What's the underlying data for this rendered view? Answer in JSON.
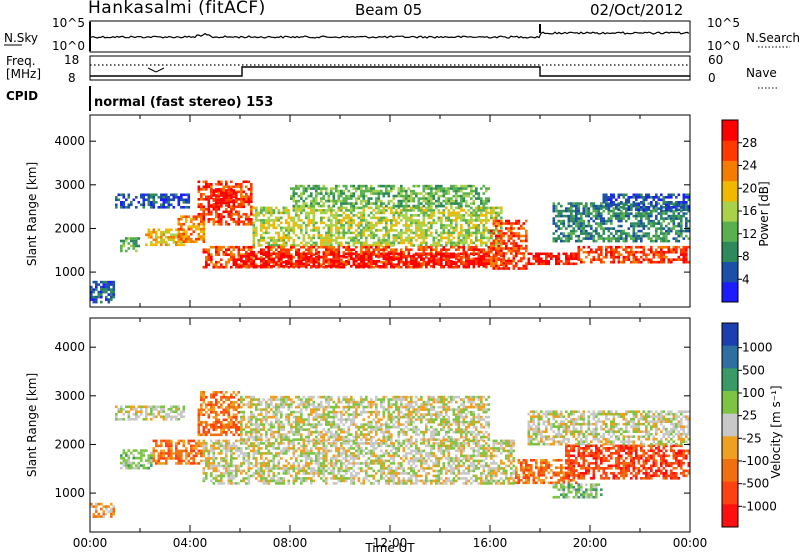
{
  "header": {
    "site": "Hankasalmi (fitACF)",
    "beam": "Beam 05",
    "date": "02/Oct/2012"
  },
  "sky_panel": {
    "left_label": "N.Sky",
    "right_label": "N.Search",
    "left_ticks": [
      "10^5",
      "10^0"
    ],
    "right_ticks": [
      "10^5",
      "10^0"
    ]
  },
  "freq_panel": {
    "left_label_1": "Freq.",
    "left_label_2": "[MHz]",
    "right_label": "Nave",
    "left_ticks": [
      "18",
      "8"
    ],
    "right_ticks": [
      "60",
      "0"
    ]
  },
  "cpid": {
    "label": "CPID",
    "value": "normal (fast stereo) 153"
  },
  "colors": {
    "power": [
      "#1c1cff",
      "#1c4fa8",
      "#2e8a5a",
      "#59b04f",
      "#a9d24a",
      "#f0b800",
      "#f47c00",
      "#ff3a00",
      "#ff0000"
    ],
    "velocity": [
      "#1b3fb0",
      "#2d6fa0",
      "#3a9a66",
      "#7cc442",
      "#c8c8c8",
      "#f0a020",
      "#f07010",
      "#ff4010",
      "#ff1010"
    ],
    "ground_scatter": "#c3c3c3"
  },
  "chart_data": [
    {
      "type": "heatmap",
      "name": "power",
      "ylabel": "Slant Range [km]",
      "xlabel": "",
      "yticks": [
        "1000",
        "2000",
        "3000",
        "4000"
      ],
      "ylim": [
        200,
        4600
      ],
      "xlim": [
        0,
        24
      ],
      "colorbar_label": "Power [dB]",
      "colorbar_ticks": [
        "4",
        "8",
        "12",
        "16",
        "20",
        "24",
        "28"
      ],
      "colorbar_range": [
        0,
        32
      ],
      "regions": [
        {
          "t0": 0.0,
          "t1": 1.0,
          "r0": 300,
          "r1": 800,
          "level": 1
        },
        {
          "t0": 1.0,
          "t1": 4.0,
          "r0": 2500,
          "r1": 2800,
          "level": 1
        },
        {
          "t0": 1.2,
          "t1": 2.0,
          "r0": 1500,
          "r1": 1800,
          "level": 3
        },
        {
          "t0": 2.2,
          "t1": 3.8,
          "r0": 1600,
          "r1": 2000,
          "level": 5
        },
        {
          "t0": 3.5,
          "t1": 4.6,
          "r0": 1700,
          "r1": 2300,
          "level": 6
        },
        {
          "t0": 4.3,
          "t1": 6.5,
          "r0": 2100,
          "r1": 3100,
          "level": 7
        },
        {
          "t0": 4.7,
          "t1": 5.9,
          "r0": 2500,
          "r1": 2900,
          "level": 8
        },
        {
          "t0": 6.5,
          "t1": 16.5,
          "r0": 1600,
          "r1": 2500,
          "level": 4
        },
        {
          "t0": 8.0,
          "t1": 16.0,
          "r0": 2500,
          "r1": 3000,
          "level": 3
        },
        {
          "t0": 4.5,
          "t1": 16.5,
          "r0": 1100,
          "r1": 1600,
          "level": 7
        },
        {
          "t0": 6.0,
          "t1": 16.0,
          "r0": 1150,
          "r1": 1450,
          "level": 8
        },
        {
          "t0": 16.0,
          "t1": 17.5,
          "r0": 1100,
          "r1": 2200,
          "level": 7
        },
        {
          "t0": 17.5,
          "t1": 19.5,
          "r0": 1200,
          "r1": 1450,
          "level": 8
        },
        {
          "t0": 19.5,
          "t1": 24.0,
          "r0": 1200,
          "r1": 1600,
          "level": 7
        },
        {
          "t0": 18.5,
          "t1": 24.0,
          "r0": 1700,
          "r1": 2600,
          "level": 2
        },
        {
          "t0": 20.5,
          "t1": 24.0,
          "r0": 2400,
          "r1": 2800,
          "level": 1
        }
      ]
    },
    {
      "type": "heatmap",
      "name": "velocity",
      "ylabel": "Slant Range [km]",
      "xlabel": "Time UT",
      "xticks": [
        "00:00",
        "04:00",
        "08:00",
        "12:00",
        "16:00",
        "20:00",
        "00:00"
      ],
      "yticks": [
        "1000",
        "2000",
        "3000",
        "4000"
      ],
      "ylim": [
        200,
        4600
      ],
      "xlim": [
        0,
        24
      ],
      "colorbar_label": "Velocity [m s⁻¹]",
      "colorbar_ticks": [
        "1000",
        "500",
        "100",
        "25",
        "-25",
        "-100",
        "-500",
        "-1000"
      ],
      "regions": [
        {
          "t0": 0.0,
          "t1": 1.0,
          "r0": 500,
          "r1": 800,
          "level": 5
        },
        {
          "t0": 1.0,
          "t1": 3.8,
          "r0": 2500,
          "r1": 2800,
          "level": 4
        },
        {
          "t0": 1.2,
          "t1": 2.5,
          "r0": 1500,
          "r1": 1900,
          "level": 3
        },
        {
          "t0": 2.5,
          "t1": 4.5,
          "r0": 1600,
          "r1": 2100,
          "level": 6
        },
        {
          "t0": 4.3,
          "t1": 6.0,
          "r0": 2200,
          "r1": 3100,
          "level": 6
        },
        {
          "t0": 4.5,
          "t1": 17.0,
          "r0": 1200,
          "r1": 2100,
          "level": 4
        },
        {
          "t0": 6.0,
          "t1": 16.0,
          "r0": 2100,
          "r1": 3000,
          "level": 4
        },
        {
          "t0": 17.0,
          "t1": 19.5,
          "r0": 1200,
          "r1": 1700,
          "level": 6
        },
        {
          "t0": 19.0,
          "t1": 24.0,
          "r0": 1300,
          "r1": 2000,
          "level": 7
        },
        {
          "t0": 17.5,
          "t1": 24.0,
          "r0": 2000,
          "r1": 2700,
          "level": 4
        },
        {
          "t0": 18.5,
          "t1": 20.5,
          "r0": 900,
          "r1": 1200,
          "level": 3
        }
      ]
    }
  ]
}
